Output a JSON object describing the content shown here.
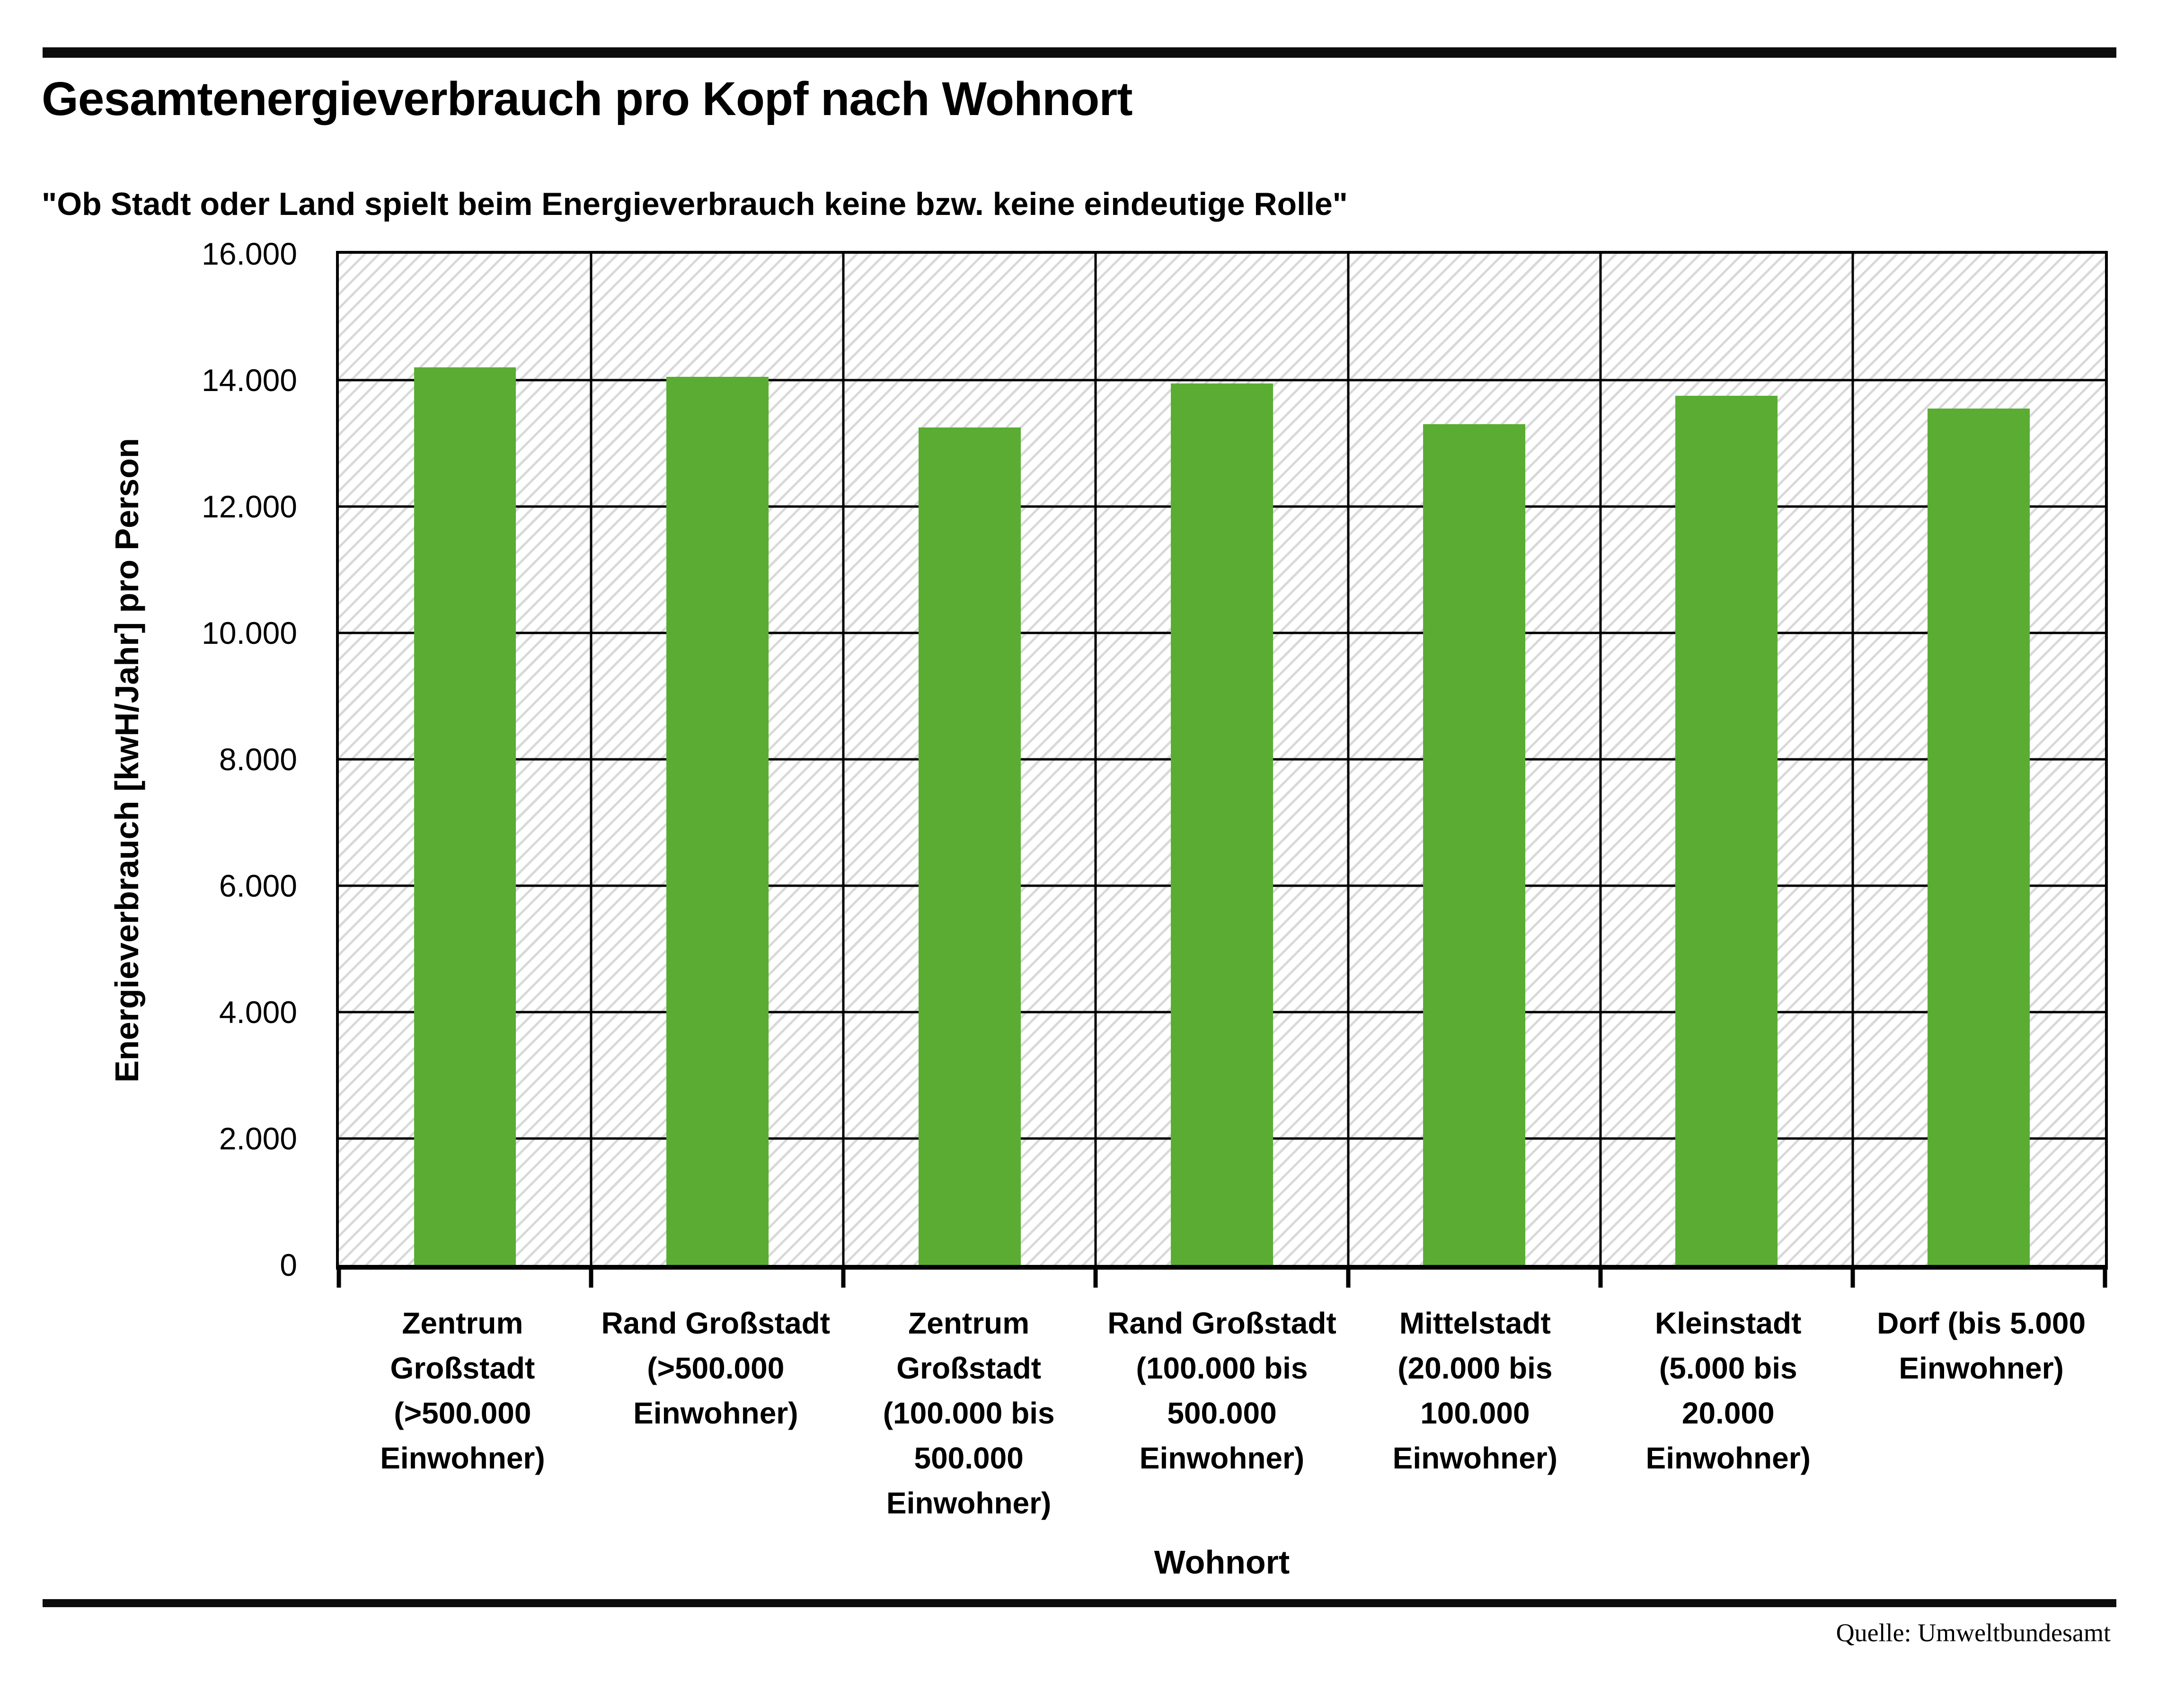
{
  "header": {
    "title": "Gesamtenergieverbrauch pro Kopf nach Wohnort",
    "subtitle": "\"Ob Stadt oder Land spielt beim Energieverbrauch keine bzw. keine eindeutige Rolle\""
  },
  "chart_data": {
    "type": "bar",
    "title": "Gesamtenergieverbrauch pro Kopf nach Wohnort",
    "subtitle": "\"Ob Stadt oder Land spielt beim Energieverbrauch keine bzw. keine eindeutige Rolle\"",
    "categories": [
      "Zentrum Großstadt (>500.000 Einwohner)",
      "Rand Großstadt (>500.000 Einwohner)",
      "Zentrum Großstadt (100.000 bis 500.000 Einwohner)",
      "Rand Großstadt (100.000 bis 500.000 Einwohner)",
      "Mittelstadt (20.000 bis 100.000 Einwohner)",
      "Kleinstadt (5.000 bis 20.000 Einwohner)",
      "Dorf (bis 5.000 Einwohner)"
    ],
    "categories_multiline": [
      "Zentrum\nGroßstadt\n(>500.000\nEinwohner)",
      "Rand Großstadt\n(>500.000\nEinwohner)",
      "Zentrum\nGroßstadt\n(100.000 bis\n500.000\nEinwohner)",
      "Rand Großstadt\n(100.000 bis\n500.000\nEinwohner)",
      "Mittelstadt\n(20.000 bis\n100.000\nEinwohner)",
      "Kleinstadt\n(5.000 bis\n20.000\nEinwohner)",
      "Dorf (bis 5.000\nEinwohner)"
    ],
    "values": [
      14200,
      14050,
      13250,
      13950,
      13300,
      13750,
      13550
    ],
    "xlabel": "Wohnort",
    "ylabel": "Energieverbrauch [kwH/Jahr] pro Person",
    "ylim": [
      0,
      16000
    ],
    "ytick_step": 2000,
    "yticks_labels": [
      "16.000",
      "14.000",
      "12.000",
      "10.000",
      "8.000",
      "6.000",
      "4.000",
      "2.000",
      "0"
    ],
    "bar_color": "#5aad32",
    "grid": true,
    "legend": "none",
    "plot_background": "white with light gray diagonal hatching"
  },
  "footer": {
    "source": "Quelle: Umweltbundesamt"
  }
}
